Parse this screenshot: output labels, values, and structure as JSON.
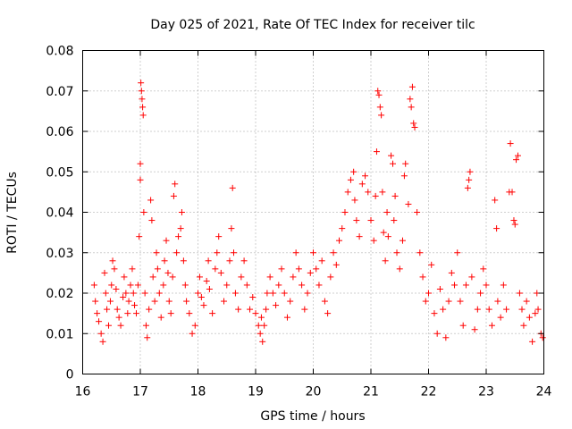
{
  "chart_data": {
    "type": "scatter",
    "title": "Day 025 of 2021, Rate Of TEC Index for receiver tilc",
    "xlabel": "GPS time / hours",
    "ylabel": "ROTI / TECUs",
    "xlim": [
      16,
      24
    ],
    "ylim": [
      0,
      0.08
    ],
    "x_ticks": [
      "16",
      "17",
      "18",
      "19",
      "20",
      "21",
      "22",
      "23",
      "24"
    ],
    "y_ticks": [
      "0",
      "0.01",
      "0.02",
      "0.03",
      "0.04",
      "0.05",
      "0.06",
      "0.07",
      "0.08"
    ],
    "grid": true,
    "marker": "+",
    "series": [
      {
        "name": "ROTI",
        "color": "#ff0000",
        "points": [
          [
            16.2,
            0.022
          ],
          [
            16.22,
            0.018
          ],
          [
            16.25,
            0.015
          ],
          [
            16.28,
            0.013
          ],
          [
            16.32,
            0.01
          ],
          [
            16.35,
            0.008
          ],
          [
            16.38,
            0.025
          ],
          [
            16.4,
            0.02
          ],
          [
            16.42,
            0.016
          ],
          [
            16.45,
            0.012
          ],
          [
            16.48,
            0.018
          ],
          [
            16.5,
            0.022
          ],
          [
            16.52,
            0.028
          ],
          [
            16.55,
            0.026
          ],
          [
            16.58,
            0.021
          ],
          [
            16.6,
            0.016
          ],
          [
            16.63,
            0.014
          ],
          [
            16.66,
            0.012
          ],
          [
            16.7,
            0.019
          ],
          [
            16.72,
            0.024
          ],
          [
            16.75,
            0.02
          ],
          [
            16.78,
            0.015
          ],
          [
            16.8,
            0.018
          ],
          [
            16.83,
            0.022
          ],
          [
            16.86,
            0.026
          ],
          [
            16.88,
            0.02
          ],
          [
            16.9,
            0.017
          ],
          [
            16.93,
            0.015
          ],
          [
            16.96,
            0.022
          ],
          [
            16.98,
            0.034
          ],
          [
            17.0,
            0.052
          ],
          [
            17.0,
            0.048
          ],
          [
            17.01,
            0.072
          ],
          [
            17.02,
            0.07
          ],
          [
            17.03,
            0.068
          ],
          [
            17.04,
            0.066
          ],
          [
            17.05,
            0.064
          ],
          [
            17.06,
            0.04
          ],
          [
            17.08,
            0.02
          ],
          [
            17.1,
            0.012
          ],
          [
            17.12,
            0.009
          ],
          [
            17.15,
            0.016
          ],
          [
            17.18,
            0.043
          ],
          [
            17.2,
            0.038
          ],
          [
            17.22,
            0.024
          ],
          [
            17.25,
            0.018
          ],
          [
            17.28,
            0.03
          ],
          [
            17.3,
            0.026
          ],
          [
            17.33,
            0.02
          ],
          [
            17.36,
            0.014
          ],
          [
            17.4,
            0.022
          ],
          [
            17.42,
            0.028
          ],
          [
            17.45,
            0.033
          ],
          [
            17.48,
            0.025
          ],
          [
            17.5,
            0.018
          ],
          [
            17.53,
            0.015
          ],
          [
            17.56,
            0.024
          ],
          [
            17.58,
            0.044
          ],
          [
            17.6,
            0.047
          ],
          [
            17.63,
            0.03
          ],
          [
            17.66,
            0.034
          ],
          [
            17.7,
            0.036
          ],
          [
            17.72,
            0.04
          ],
          [
            17.75,
            0.028
          ],
          [
            17.78,
            0.022
          ],
          [
            17.8,
            0.018
          ],
          [
            17.85,
            0.015
          ],
          [
            17.9,
            0.01
          ],
          [
            17.95,
            0.012
          ],
          [
            18.0,
            0.02
          ],
          [
            18.03,
            0.024
          ],
          [
            18.06,
            0.019
          ],
          [
            18.1,
            0.017
          ],
          [
            18.15,
            0.023
          ],
          [
            18.18,
            0.028
          ],
          [
            18.2,
            0.021
          ],
          [
            18.25,
            0.015
          ],
          [
            18.3,
            0.026
          ],
          [
            18.33,
            0.03
          ],
          [
            18.36,
            0.034
          ],
          [
            18.4,
            0.025
          ],
          [
            18.45,
            0.018
          ],
          [
            18.5,
            0.022
          ],
          [
            18.55,
            0.028
          ],
          [
            18.58,
            0.036
          ],
          [
            18.6,
            0.046
          ],
          [
            18.62,
            0.03
          ],
          [
            18.65,
            0.02
          ],
          [
            18.7,
            0.016
          ],
          [
            18.75,
            0.024
          ],
          [
            18.8,
            0.028
          ],
          [
            18.85,
            0.022
          ],
          [
            18.9,
            0.016
          ],
          [
            18.95,
            0.019
          ],
          [
            19.0,
            0.015
          ],
          [
            19.05,
            0.012
          ],
          [
            19.08,
            0.01
          ],
          [
            19.1,
            0.014
          ],
          [
            19.12,
            0.008
          ],
          [
            19.15,
            0.012
          ],
          [
            19.18,
            0.016
          ],
          [
            19.2,
            0.02
          ],
          [
            19.25,
            0.024
          ],
          [
            19.3,
            0.02
          ],
          [
            19.35,
            0.017
          ],
          [
            19.4,
            0.022
          ],
          [
            19.45,
            0.026
          ],
          [
            19.5,
            0.02
          ],
          [
            19.55,
            0.014
          ],
          [
            19.6,
            0.018
          ],
          [
            19.65,
            0.024
          ],
          [
            19.7,
            0.03
          ],
          [
            19.75,
            0.026
          ],
          [
            19.8,
            0.022
          ],
          [
            19.85,
            0.016
          ],
          [
            19.9,
            0.02
          ],
          [
            19.95,
            0.025
          ],
          [
            20.0,
            0.03
          ],
          [
            20.05,
            0.026
          ],
          [
            20.1,
            0.022
          ],
          [
            20.15,
            0.028
          ],
          [
            20.2,
            0.018
          ],
          [
            20.25,
            0.015
          ],
          [
            20.3,
            0.024
          ],
          [
            20.35,
            0.03
          ],
          [
            20.4,
            0.027
          ],
          [
            20.45,
            0.033
          ],
          [
            20.5,
            0.036
          ],
          [
            20.55,
            0.04
          ],
          [
            20.6,
            0.045
          ],
          [
            20.65,
            0.048
          ],
          [
            20.7,
            0.05
          ],
          [
            20.72,
            0.043
          ],
          [
            20.75,
            0.038
          ],
          [
            20.8,
            0.034
          ],
          [
            20.85,
            0.047
          ],
          [
            20.9,
            0.049
          ],
          [
            20.95,
            0.045
          ],
          [
            21.0,
            0.038
          ],
          [
            21.05,
            0.033
          ],
          [
            21.08,
            0.044
          ],
          [
            21.1,
            0.055
          ],
          [
            21.12,
            0.07
          ],
          [
            21.14,
            0.069
          ],
          [
            21.16,
            0.066
          ],
          [
            21.18,
            0.064
          ],
          [
            21.2,
            0.045
          ],
          [
            21.22,
            0.035
          ],
          [
            21.25,
            0.028
          ],
          [
            21.28,
            0.04
          ],
          [
            21.3,
            0.034
          ],
          [
            21.35,
            0.054
          ],
          [
            21.38,
            0.052
          ],
          [
            21.4,
            0.038
          ],
          [
            21.42,
            0.044
          ],
          [
            21.45,
            0.03
          ],
          [
            21.5,
            0.026
          ],
          [
            21.55,
            0.033
          ],
          [
            21.58,
            0.049
          ],
          [
            21.6,
            0.052
          ],
          [
            21.65,
            0.042
          ],
          [
            21.68,
            0.068
          ],
          [
            21.7,
            0.066
          ],
          [
            21.72,
            0.071
          ],
          [
            21.74,
            0.062
          ],
          [
            21.76,
            0.061
          ],
          [
            21.8,
            0.04
          ],
          [
            21.85,
            0.03
          ],
          [
            21.9,
            0.024
          ],
          [
            21.95,
            0.018
          ],
          [
            22.0,
            0.02
          ],
          [
            22.05,
            0.027
          ],
          [
            22.1,
            0.015
          ],
          [
            22.15,
            0.01
          ],
          [
            22.2,
            0.021
          ],
          [
            22.25,
            0.016
          ],
          [
            22.3,
            0.009
          ],
          [
            22.35,
            0.018
          ],
          [
            22.4,
            0.025
          ],
          [
            22.45,
            0.022
          ],
          [
            22.5,
            0.03
          ],
          [
            22.55,
            0.018
          ],
          [
            22.6,
            0.012
          ],
          [
            22.65,
            0.022
          ],
          [
            22.68,
            0.046
          ],
          [
            22.7,
            0.048
          ],
          [
            22.72,
            0.05
          ],
          [
            22.75,
            0.024
          ],
          [
            22.8,
            0.011
          ],
          [
            22.85,
            0.016
          ],
          [
            22.9,
            0.02
          ],
          [
            22.95,
            0.026
          ],
          [
            23.0,
            0.022
          ],
          [
            23.05,
            0.016
          ],
          [
            23.1,
            0.012
          ],
          [
            23.15,
            0.043
          ],
          [
            23.18,
            0.036
          ],
          [
            23.2,
            0.018
          ],
          [
            23.25,
            0.014
          ],
          [
            23.3,
            0.022
          ],
          [
            23.35,
            0.016
          ],
          [
            23.4,
            0.045
          ],
          [
            23.42,
            0.057
          ],
          [
            23.45,
            0.045
          ],
          [
            23.48,
            0.038
          ],
          [
            23.5,
            0.037
          ],
          [
            23.52,
            0.053
          ],
          [
            23.55,
            0.054
          ],
          [
            23.58,
            0.02
          ],
          [
            23.62,
            0.016
          ],
          [
            23.65,
            0.012
          ],
          [
            23.7,
            0.018
          ],
          [
            23.75,
            0.014
          ],
          [
            23.8,
            0.008
          ],
          [
            23.85,
            0.015
          ],
          [
            23.88,
            0.02
          ],
          [
            23.9,
            0.016
          ],
          [
            23.95,
            0.01
          ],
          [
            23.98,
            0.009
          ]
        ]
      }
    ]
  }
}
